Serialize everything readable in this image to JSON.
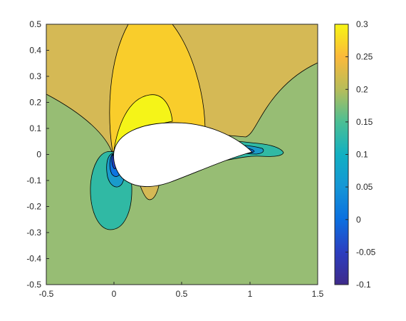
{
  "chart_data": {
    "type": "contour",
    "title": "",
    "xlabel": "",
    "ylabel": "",
    "xlim": [
      -0.5,
      1.5
    ],
    "ylim": [
      -0.5,
      0.5
    ],
    "x_ticks": [
      "-0.5",
      "0",
      "0.5",
      "1",
      "1.5"
    ],
    "y_ticks": [
      "0.5",
      "0.4",
      "0.3",
      "0.2",
      "0.1",
      "0",
      "-0.1",
      "-0.2",
      "-0.3",
      "-0.4",
      "-0.5"
    ],
    "colorbar": {
      "range": [
        -0.1,
        0.3
      ],
      "ticks": [
        "0.3",
        "0.25",
        "0.2",
        "0.15",
        "0.1",
        "0.05",
        "0",
        "-0.05",
        "-0.1"
      ],
      "colormap": "parula"
    },
    "contour_levels": [
      -0.1,
      -0.05,
      0,
      0.05,
      0.1,
      0.15,
      0.2,
      0.25,
      0.3
    ],
    "regions": [
      {
        "level": 0.15,
        "color": "#97bd74",
        "region": "background"
      },
      {
        "level": 0.2,
        "color": "#d5b955",
        "region": "upper field"
      },
      {
        "level": 0.25,
        "color": "#f9cd2b",
        "region": "suction bubble"
      },
      {
        "level": 0.3,
        "color": "#f5f418",
        "region": "leading edge suction peak"
      },
      {
        "level": 0.1,
        "color": "#30b9a4",
        "region": "lower leading edge lobe and wake"
      },
      {
        "level": 0.05,
        "color": "#1a9bcb",
        "region": "stagnation"
      },
      {
        "level": 0,
        "color": "#0d74e0",
        "region": "stagnation core"
      },
      {
        "level": -0.05,
        "color": "#2346c8",
        "region": "stagnation core"
      }
    ],
    "grid": false,
    "legend": "none"
  }
}
